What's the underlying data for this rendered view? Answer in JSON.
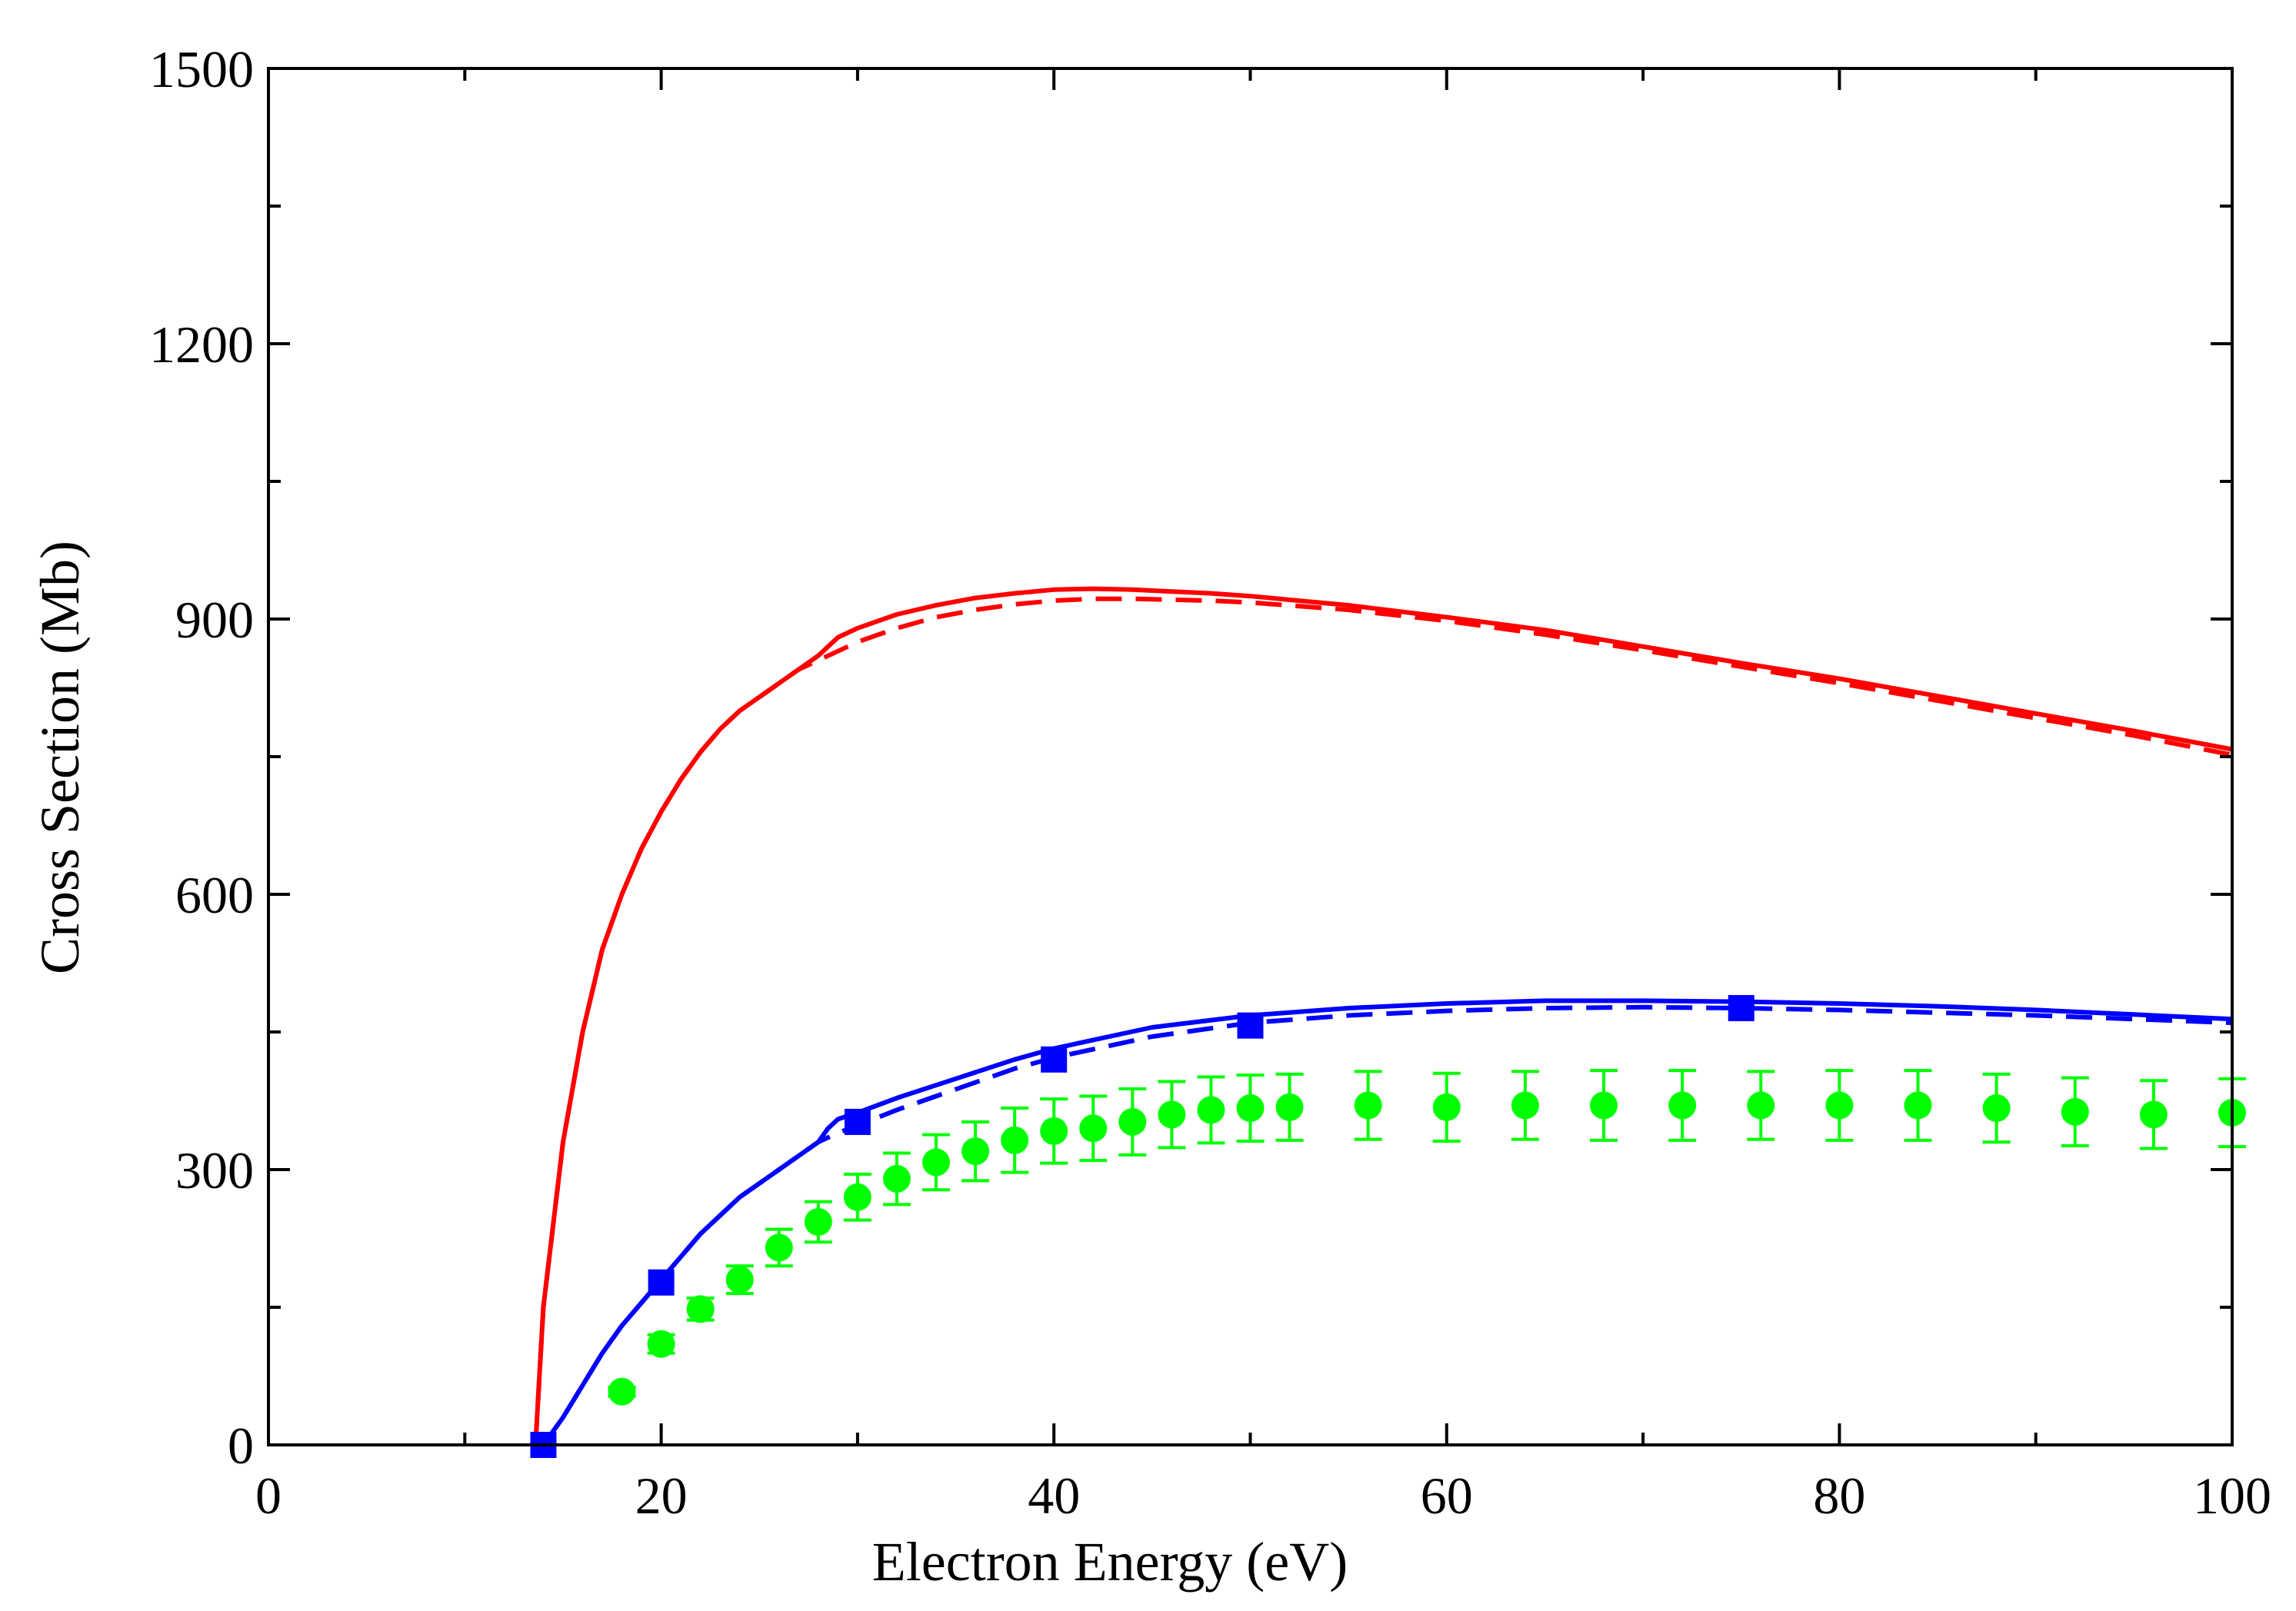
{
  "chart_data": {
    "type": "line",
    "title": "",
    "xlabel": "Electron Energy (eV)",
    "ylabel": "Cross Section (Mb)",
    "xlim": [
      0,
      100
    ],
    "ylim": [
      0,
      1500
    ],
    "xticks": [
      0,
      20,
      40,
      60,
      80,
      100
    ],
    "yticks": [
      0,
      300,
      600,
      900,
      1200,
      1500
    ],
    "grid": false,
    "legend": "none",
    "series": [
      {
        "name": "red solid",
        "style": "solid",
        "color": "#ff0000",
        "x": [
          13.6,
          14,
          15,
          16,
          17,
          18,
          19,
          20,
          21,
          22,
          23,
          24,
          25,
          26,
          27,
          28,
          28.5,
          29,
          30,
          32,
          34,
          36,
          38,
          40,
          42,
          44,
          46,
          48,
          50,
          55,
          60,
          65,
          70,
          75,
          80,
          85,
          90,
          95,
          100
        ],
        "y": [
          0,
          150,
          330,
          450,
          540,
          600,
          650,
          690,
          725,
          755,
          780,
          800,
          815,
          830,
          845,
          860,
          870,
          880,
          890,
          905,
          915,
          923,
          928,
          932,
          933,
          932,
          930,
          928,
          925,
          915,
          902,
          888,
          870,
          852,
          835,
          816,
          797,
          778,
          758
        ]
      },
      {
        "name": "red dashed",
        "style": "dashed",
        "color": "#ff0000",
        "x": [
          13.6,
          14,
          15,
          16,
          17,
          18,
          19,
          20,
          21,
          22,
          23,
          24,
          25,
          26,
          27,
          28,
          29,
          30,
          32,
          34,
          36,
          38,
          40,
          42,
          44,
          46,
          48,
          50,
          55,
          60,
          65,
          70,
          75,
          80,
          85,
          90,
          95,
          100
        ],
        "y": [
          0,
          150,
          330,
          450,
          540,
          600,
          650,
          690,
          725,
          755,
          780,
          800,
          815,
          830,
          845,
          855,
          865,
          875,
          890,
          902,
          910,
          916,
          920,
          922,
          922,
          921,
          920,
          918,
          910,
          898,
          883,
          866,
          848,
          830,
          811,
          792,
          773,
          752
        ]
      },
      {
        "name": "blue solid",
        "style": "solid",
        "color": "#0000ff",
        "x": [
          14,
          15,
          16,
          17,
          18,
          19,
          20,
          22,
          24,
          26,
          28,
          28.5,
          29,
          30,
          32,
          34,
          36,
          38,
          40,
          45,
          50,
          55,
          60,
          65,
          70,
          75,
          80,
          85,
          90,
          95,
          100
        ],
        "y": [
          0,
          30,
          65,
          100,
          130,
          155,
          180,
          230,
          270,
          300,
          330,
          345,
          355,
          362,
          378,
          392,
          406,
          420,
          432,
          455,
          468,
          476,
          481,
          484,
          484,
          483,
          481,
          478,
          474,
          469,
          464
        ]
      },
      {
        "name": "blue dashed",
        "style": "dashed",
        "color": "#0000ff",
        "x": [
          14,
          15,
          16,
          17,
          18,
          19,
          20,
          22,
          24,
          26,
          28,
          29,
          30,
          32,
          34,
          36,
          38,
          40,
          45,
          50,
          55,
          60,
          65,
          70,
          75,
          80,
          85,
          90,
          95,
          100
        ],
        "y": [
          0,
          30,
          65,
          100,
          130,
          155,
          180,
          230,
          270,
          300,
          330,
          340,
          348,
          365,
          380,
          395,
          410,
          422,
          445,
          460,
          468,
          473,
          476,
          477,
          476,
          474,
          471,
          468,
          464,
          460
        ]
      },
      {
        "name": "blue squares",
        "style": "markers",
        "marker": "square",
        "color": "#0000ff",
        "x": [
          14,
          20,
          30,
          40,
          50,
          75
        ],
        "y": [
          0,
          177,
          352,
          420,
          457,
          476
        ]
      },
      {
        "name": "green circles with error bars",
        "style": "markers",
        "marker": "circle",
        "color": "#00ff00",
        "x": [
          18,
          20,
          22,
          24,
          26,
          28,
          30,
          32,
          34,
          36,
          38,
          40,
          42,
          44,
          46,
          48,
          50,
          52,
          56,
          60,
          64,
          68,
          72,
          76,
          80,
          84,
          88,
          92,
          96,
          100
        ],
        "y": [
          58,
          110,
          148,
          180,
          215,
          243,
          270,
          290,
          308,
          320,
          332,
          342,
          345,
          352,
          360,
          365,
          367,
          368,
          370,
          368,
          370,
          370,
          370,
          370,
          370,
          370,
          367,
          363,
          360,
          362
        ],
        "yerr": [
          5,
          10,
          12,
          15,
          20,
          22,
          25,
          28,
          30,
          32,
          35,
          35,
          35,
          36,
          36,
          36,
          36,
          36,
          37,
          37,
          37,
          38,
          38,
          37,
          38,
          38,
          37,
          37,
          37,
          37
        ]
      }
    ]
  }
}
